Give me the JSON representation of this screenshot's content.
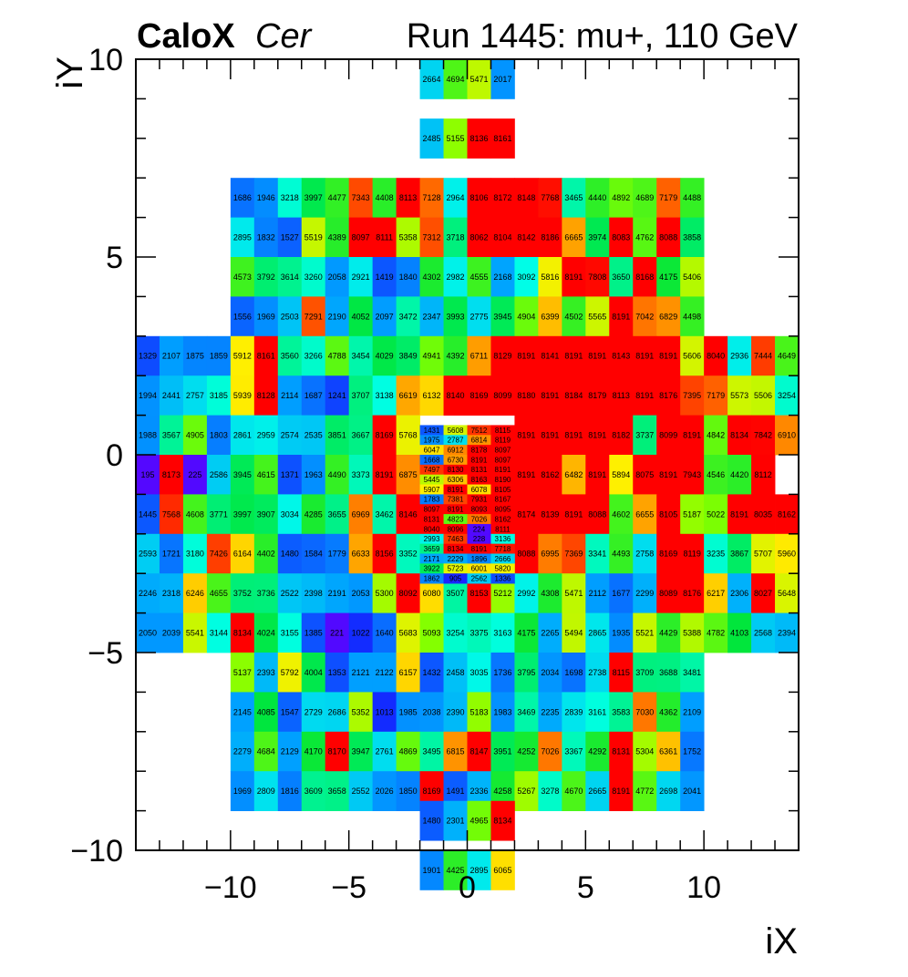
{
  "header": {
    "brand": "CaloX",
    "channel": "Cer",
    "run_info": "Run 1445: mu+, 110 GeV"
  },
  "chart_data": {
    "type": "heatmap",
    "title": "CaloX Cer   Run 1445: mu+, 110 GeV",
    "xlabel": "iX",
    "ylabel": "iY",
    "xlim": [
      -14,
      14
    ],
    "ylim": [
      -10,
      10
    ],
    "x_ticks": [
      -10,
      -5,
      0,
      5,
      10
    ],
    "y_ticks": [
      -10,
      -5,
      0,
      5,
      10
    ],
    "x_tick_labels": [
      "−10",
      "−5",
      "0",
      "5",
      "10"
    ],
    "y_tick_labels": [
      "−10",
      "−5",
      "0",
      "5",
      "10"
    ],
    "color_scale": "rainbow",
    "z_range": [
      0,
      8191
    ],
    "rows": [
      {
        "y": 9,
        "h": 1,
        "x0": -2,
        "w": 1,
        "values": [
          2664,
          4694,
          5471,
          2017
        ]
      },
      {
        "y": 8,
        "h": 1,
        "x0": -2,
        "w": 1,
        "values": [
          null,
          null,
          null,
          null
        ]
      },
      {
        "y": 7.5,
        "h": 1,
        "x0": -2,
        "w": 1,
        "values": [
          2485,
          5155,
          8136,
          8161
        ]
      },
      {
        "y": 6,
        "h": 1,
        "x0": -10,
        "w": 1,
        "values": [
          1686,
          1946,
          3218,
          3997,
          4477,
          7343,
          4408,
          8113,
          7128,
          2964,
          8106,
          8172,
          8148,
          7768,
          3465,
          4440,
          4892,
          4689,
          7179,
          4488
        ]
      },
      {
        "y": 5,
        "h": 1,
        "x0": -10,
        "w": 1,
        "values": [
          2895,
          1832,
          1527,
          5519,
          4389,
          8097,
          8111,
          5358,
          7312,
          3718,
          8062,
          8104,
          8142,
          8186,
          6665,
          3974,
          8083,
          4762,
          8088,
          3858
        ]
      },
      {
        "y": 4,
        "h": 1,
        "x0": -10,
        "w": 1,
        "values": [
          4573,
          3792,
          3614,
          3260,
          2058,
          2921,
          1419,
          1840,
          4302,
          2982,
          4555,
          2168,
          3092,
          5816,
          8191,
          7808,
          3650,
          8168,
          4175,
          5406
        ]
      },
      {
        "y": 3,
        "h": 1,
        "x0": -10,
        "w": 1,
        "values": [
          1556,
          1969,
          2503,
          7291,
          2190,
          4052,
          2097,
          3472,
          2347,
          3993,
          2775,
          3945,
          4904,
          6399,
          4502,
          5565,
          8191,
          7042,
          6829,
          4498
        ]
      },
      {
        "y": 2,
        "h": 1,
        "x0": -14,
        "w": 1,
        "values": [
          1329,
          2107,
          1875,
          1859,
          5912,
          8161,
          3560,
          3266,
          4788,
          3454,
          4029,
          3849,
          4941,
          4392,
          6711,
          8129,
          8191,
          8141,
          8191,
          8191,
          8143,
          8191,
          8191,
          5606,
          8040,
          2936,
          7444,
          4649
        ]
      },
      {
        "y": 1,
        "h": 1,
        "x0": -14,
        "w": 1,
        "values": [
          1994,
          2441,
          2757,
          3185,
          5939,
          8128,
          2114,
          1687,
          1241,
          3707,
          3138,
          6619,
          6132,
          8140,
          8169,
          8099,
          8180,
          8191,
          8184,
          8179,
          8113,
          8191,
          8176,
          7395,
          7179,
          5573,
          5506,
          3254
        ]
      },
      {
        "y": 0,
        "h": 1,
        "x0": -14,
        "w": 1,
        "values": [
          1988,
          3567,
          4905,
          1803,
          2861,
          2959,
          2574,
          2535,
          3851,
          3667,
          8169,
          5768,
          null,
          null,
          null,
          null,
          8191,
          8191,
          8191,
          8191,
          8182,
          3737,
          8099,
          8191,
          4842,
          8134,
          7842,
          6910
        ]
      },
      {
        "y": -1,
        "h": 1,
        "x0": -14,
        "w": 1,
        "values": [
          195,
          8173,
          225,
          2586,
          3945,
          4615,
          1371,
          1963,
          4490,
          3373,
          8191,
          6875,
          null,
          null,
          null,
          null,
          8191,
          8162,
          6482,
          8191,
          5894,
          8075,
          8191,
          7943,
          4546,
          4420,
          8112,
          null
        ]
      },
      {
        "y": -2,
        "h": 1,
        "x0": -14,
        "w": 1,
        "values": [
          1445,
          7568,
          4608,
          3771,
          3997,
          3907,
          3034,
          4285,
          3655,
          6969,
          3462,
          8146,
          null,
          null,
          null,
          null,
          8174,
          8139,
          8191,
          8088,
          4602,
          6655,
          8105,
          5187,
          5022,
          8191,
          8035,
          8162
        ]
      },
      {
        "y": -3,
        "h": 1,
        "x0": -14,
        "w": 1,
        "values": [
          2593,
          1721,
          3180,
          7426,
          6164,
          4402,
          1480,
          1584,
          1779,
          6633,
          8156,
          3352,
          null,
          null,
          null,
          null,
          8088,
          6995,
          7369,
          3341,
          4493,
          2758,
          8169,
          8119,
          3235,
          3867,
          5707,
          5960
        ]
      },
      {
        "y": -4,
        "h": 1,
        "x0": -14,
        "w": 1,
        "values": [
          2246,
          2318,
          6246,
          4655,
          3752,
          3736,
          2522,
          2398,
          2191,
          2053,
          5300,
          8092,
          6080,
          3507,
          8153,
          5212,
          2992,
          4308,
          5471,
          2112,
          1677,
          2299,
          8089,
          8176,
          6217,
          2306,
          8027,
          5648
        ]
      },
      {
        "y": -5,
        "h": 1,
        "x0": -14,
        "w": 1,
        "values": [
          2050,
          2039,
          5541,
          3144,
          8134,
          4024,
          3155,
          1385,
          221,
          1022,
          1640,
          5683,
          5093,
          3254,
          3375,
          3163,
          4175,
          2265,
          5494,
          2865,
          1935,
          5521,
          4429,
          5388,
          4782,
          4103,
          2568,
          2394
        ]
      },
      {
        "y": -6,
        "h": 1,
        "x0": -10,
        "w": 1,
        "values": [
          5137,
          2393,
          5792,
          4004,
          1353,
          2121,
          2122,
          6157,
          1432,
          2458,
          3035,
          1736,
          3795,
          2034,
          1698,
          2738,
          8115,
          3709,
          3688,
          3481
        ]
      },
      {
        "y": -7,
        "h": 1,
        "x0": -10,
        "w": 1,
        "values": [
          2145,
          4085,
          1547,
          2729,
          2686,
          5352,
          1013,
          1985,
          2038,
          2390,
          5183,
          1983,
          3469,
          2235,
          2839,
          3161,
          3583,
          7030,
          4362,
          2109
        ]
      },
      {
        "y": -8,
        "h": 1,
        "x0": -10,
        "w": 1,
        "values": [
          2279,
          4684,
          2129,
          4170,
          8170,
          3947,
          2761,
          4869,
          3495,
          6815,
          8147,
          3951,
          4252,
          7026,
          3367,
          4292,
          8131,
          5304,
          6361,
          1752
        ]
      },
      {
        "y": -9,
        "h": 1,
        "x0": -10,
        "w": 1,
        "values": [
          1969,
          2809,
          1816,
          3609,
          3658,
          2552,
          2026,
          1850,
          8169,
          1491,
          2336,
          4258,
          5267,
          3278,
          4670,
          2665,
          8191,
          4772,
          2698,
          2041
        ]
      }
    ],
    "fine_rows": [
      {
        "y": 0.5,
        "values": [
          1431,
          5608,
          7512,
          8115
        ]
      },
      {
        "y": 0.25,
        "values": [
          1975,
          2787,
          6814,
          8119
        ]
      },
      {
        "y": 0,
        "values": [
          6047,
          6912,
          8178,
          8097
        ]
      },
      {
        "y": -0.25,
        "values": [
          1668,
          6730,
          8191,
          8097
        ]
      },
      {
        "y": -0.5,
        "values": [
          7497,
          8130,
          8131,
          8191
        ]
      },
      {
        "y": -0.75,
        "values": [
          5445,
          6306,
          8163,
          8190
        ]
      },
      {
        "y": -1,
        "values": [
          5907,
          8191,
          6078,
          8105
        ]
      },
      {
        "y": -1.25,
        "values": [
          1783,
          7381,
          7931,
          8167
        ]
      },
      {
        "y": -1.5,
        "values": [
          8097,
          8191,
          8093,
          8095
        ]
      },
      {
        "y": -1.75,
        "values": [
          8131,
          4823,
          7026,
          8162
        ]
      },
      {
        "y": -2,
        "values": [
          8040,
          8096,
          224,
          8111
        ]
      },
      {
        "y": -2.25,
        "values": [
          2993,
          7463,
          228,
          3136
        ]
      },
      {
        "y": -2.5,
        "values": [
          3659,
          8134,
          8191,
          7718
        ]
      },
      {
        "y": -2.75,
        "values": [
          2171,
          2229,
          1896,
          2666
        ]
      },
      {
        "y": -3,
        "values": [
          3922,
          5723,
          6001,
          5820
        ]
      },
      {
        "y": -3.25,
        "values": [
          1862,
          905,
          2562,
          1336
        ]
      }
    ],
    "stacks": [
      {
        "y": -9.75,
        "values": [
          1480,
          2301,
          4965,
          8134
        ]
      },
      {
        "y": -11,
        "values": [
          1901,
          4425,
          2895,
          6065
        ]
      }
    ]
  }
}
